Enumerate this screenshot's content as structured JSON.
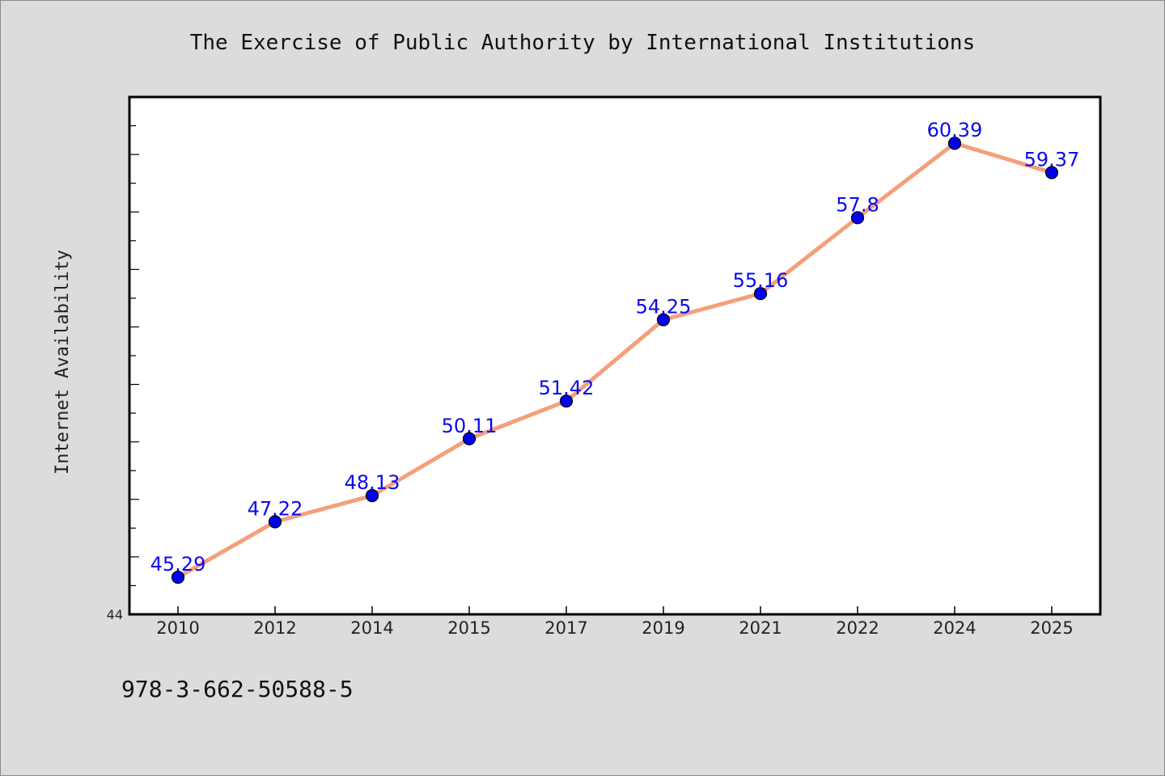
{
  "chart_data": {
    "type": "line",
    "title": "The Exercise of Public Authority by International Institutions",
    "xlabel": "",
    "ylabel": "Internet Availability",
    "categories": [
      "2010",
      "2012",
      "2014",
      "2015",
      "2017",
      "2019",
      "2021",
      "2022",
      "2024",
      "2025"
    ],
    "values": [
      45.29,
      47.22,
      48.13,
      50.11,
      51.42,
      54.25,
      55.16,
      57.8,
      60.39,
      59.37
    ],
    "data_labels": [
      "45.29",
      "47.22",
      "48.13",
      "50.11",
      "51.42",
      "54.25",
      "55.16",
      "57.8",
      "60.39",
      "59.37"
    ],
    "y_tick_labels": [
      "44"
    ],
    "ylim": [
      44,
      62
    ],
    "grid": false,
    "line_color": "#f4a07c",
    "marker_color": "#0000ee"
  },
  "footer": {
    "isbn": "978-3-662-50588-5"
  }
}
